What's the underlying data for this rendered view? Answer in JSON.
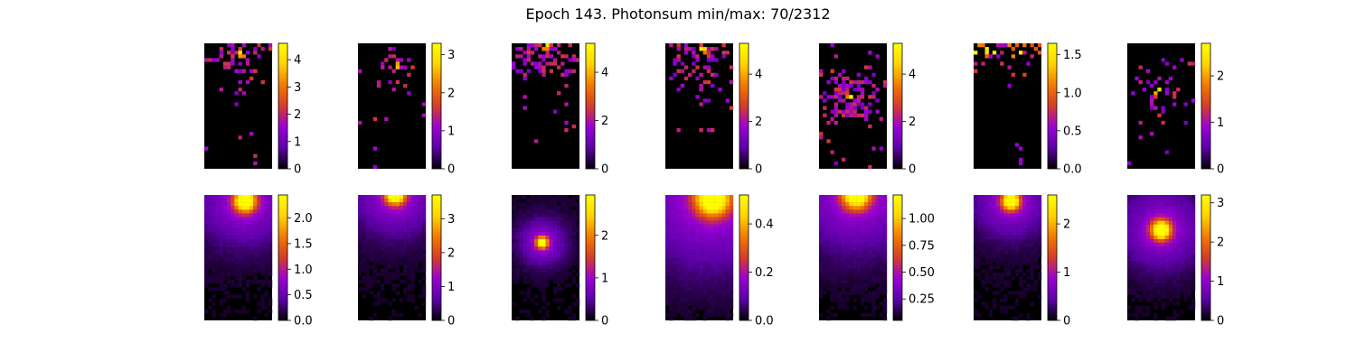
{
  "title": "Epoch 143. Photonsum min/max: 70/2312",
  "colormap": {
    "name": "gnuplot",
    "stops": [
      "#000000",
      "#5c00a8",
      "#9a00d6",
      "#d53c2a",
      "#f27a00",
      "#ffd400",
      "#ffff00"
    ]
  },
  "chart_data": [
    {
      "type": "heatmap",
      "row": 1,
      "col": 1,
      "style": "sparse",
      "peak": [
        0.55,
        0.08
      ],
      "spread": 0.22,
      "density": 0.55,
      "vlim": [
        0,
        4.6
      ],
      "ticks": [
        "0",
        "1",
        "2",
        "3",
        "4"
      ],
      "tick_values": [
        0,
        1,
        2,
        3,
        4
      ]
    },
    {
      "type": "heatmap",
      "row": 1,
      "col": 2,
      "style": "sparse",
      "peak": [
        0.55,
        0.18
      ],
      "spread": 0.15,
      "density": 0.45,
      "vlim": [
        0,
        3.3
      ],
      "ticks": [
        "0",
        "1",
        "2",
        "3"
      ],
      "tick_values": [
        0,
        1,
        2,
        3
      ]
    },
    {
      "type": "heatmap",
      "row": 1,
      "col": 3,
      "style": "sparse",
      "peak": [
        0.5,
        0.02
      ],
      "spread": 0.3,
      "density": 0.6,
      "vlim": [
        0,
        5.2
      ],
      "ticks": [
        "0",
        "2",
        "4"
      ],
      "tick_values": [
        0,
        2,
        4
      ]
    },
    {
      "type": "heatmap",
      "row": 1,
      "col": 4,
      "style": "sparse",
      "peak": [
        0.55,
        0.05
      ],
      "spread": 0.3,
      "density": 0.6,
      "vlim": [
        0,
        5.3
      ],
      "ticks": [
        "0",
        "2",
        "4"
      ],
      "tick_values": [
        0,
        2,
        4
      ]
    },
    {
      "type": "heatmap",
      "row": 1,
      "col": 5,
      "style": "sparse",
      "peak": [
        0.47,
        0.42
      ],
      "spread": 0.28,
      "density": 0.7,
      "vlim": [
        0,
        5.3
      ],
      "ticks": [
        "0",
        "2",
        "4"
      ],
      "tick_values": [
        0,
        2,
        4
      ]
    },
    {
      "type": "heatmap",
      "row": 1,
      "col": 6,
      "style": "edge",
      "peak": [
        0.6,
        0.01
      ],
      "spread": 0.25,
      "density": 0.35,
      "vlim": [
        0,
        1.65
      ],
      "ticks": [
        "0.0",
        "0.5",
        "1.0",
        "1.5"
      ],
      "tick_values": [
        0,
        0.5,
        1.0,
        1.5
      ]
    },
    {
      "type": "heatmap",
      "row": 1,
      "col": 7,
      "style": "sparse",
      "peak": [
        0.45,
        0.38
      ],
      "spread": 0.2,
      "density": 0.45,
      "vlim": [
        0,
        2.7
      ],
      "ticks": [
        "0",
        "1",
        "2"
      ],
      "tick_values": [
        0,
        1,
        2
      ]
    },
    {
      "type": "heatmap",
      "row": 2,
      "col": 1,
      "style": "smooth",
      "peak": [
        0.6,
        0.05
      ],
      "spread": 0.22,
      "halo": 0.5,
      "vlim": [
        0,
        2.45
      ],
      "ticks": [
        "0.0",
        "0.5",
        "1.0",
        "1.5",
        "2.0"
      ],
      "tick_values": [
        0,
        0.5,
        1.0,
        1.5,
        2.0
      ]
    },
    {
      "type": "heatmap",
      "row": 2,
      "col": 2,
      "style": "smooth",
      "peak": [
        0.55,
        0.0
      ],
      "spread": 0.2,
      "halo": 0.45,
      "vlim": [
        0,
        3.7
      ],
      "ticks": [
        "0",
        "1",
        "2",
        "3"
      ],
      "tick_values": [
        0,
        1,
        2,
        3
      ]
    },
    {
      "type": "heatmap",
      "row": 2,
      "col": 3,
      "style": "smooth",
      "peak": [
        0.45,
        0.38
      ],
      "spread": 0.12,
      "halo": 0.25,
      "vlim": [
        0,
        2.95
      ],
      "ticks": [
        "0",
        "1",
        "2"
      ],
      "tick_values": [
        0,
        1,
        2
      ]
    },
    {
      "type": "heatmap",
      "row": 2,
      "col": 4,
      "style": "smooth",
      "peak": [
        0.7,
        0.03
      ],
      "spread": 0.35,
      "halo": 0.7,
      "vlim": [
        0,
        0.52
      ],
      "ticks": [
        "0.0",
        "0.2",
        "0.4"
      ],
      "tick_values": [
        0,
        0.2,
        0.4
      ]
    },
    {
      "type": "heatmap",
      "row": 2,
      "col": 5,
      "style": "smooth",
      "peak": [
        0.55,
        0.0
      ],
      "spread": 0.28,
      "halo": 0.55,
      "vlim": [
        0.05,
        1.22
      ],
      "ticks": [
        "0.25",
        "0.50",
        "0.75",
        "1.00"
      ],
      "tick_values": [
        0.25,
        0.5,
        0.75,
        1.0
      ]
    },
    {
      "type": "heatmap",
      "row": 2,
      "col": 6,
      "style": "smooth",
      "peak": [
        0.55,
        0.05
      ],
      "spread": 0.18,
      "halo": 0.45,
      "vlim": [
        0,
        2.6
      ],
      "ticks": [
        "0",
        "1",
        "2"
      ],
      "tick_values": [
        0,
        1,
        2
      ]
    },
    {
      "type": "heatmap",
      "row": 2,
      "col": 7,
      "style": "smooth",
      "peak": [
        0.5,
        0.28
      ],
      "spread": 0.2,
      "halo": 0.4,
      "vlim": [
        0,
        3.2
      ],
      "ticks": [
        "0",
        "1",
        "2",
        "3"
      ],
      "tick_values": [
        0,
        1,
        2,
        3
      ]
    }
  ]
}
